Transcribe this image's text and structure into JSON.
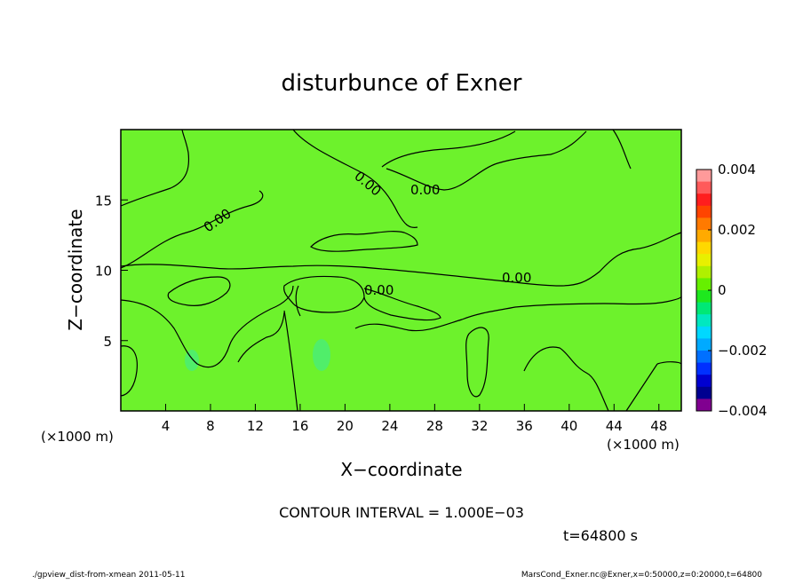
{
  "chart_data": {
    "type": "heatmap",
    "title": "disturbunce of Exner",
    "xlabel": "X−coordinate",
    "ylabel": "Z−coordinate",
    "xunit": "(×1000 m)",
    "yunit": "(×1000 m)",
    "xlim": [
      0,
      50
    ],
    "ylim": [
      0,
      20
    ],
    "xticks": [
      4,
      8,
      12,
      16,
      20,
      24,
      28,
      32,
      36,
      40,
      44,
      48
    ],
    "yticks": [
      5,
      10,
      15
    ],
    "field_value_dominant": 0,
    "contour_labels": [
      "0.00",
      "0.00",
      "0.00",
      "0.00",
      "0.00"
    ],
    "colorbar": {
      "ticks": [
        "0.004",
        "0.002",
        "0",
        "−0.002",
        "−0.004"
      ],
      "tick_values": [
        0.004,
        0.002,
        0,
        -0.002,
        -0.004
      ],
      "vmin": -0.004,
      "vmax": 0.004,
      "colors_top_to_bottom": [
        "#ff9a9a",
        "#ff5a5a",
        "#ff1e1e",
        "#ff4400",
        "#ff7a00",
        "#ffaa00",
        "#ffd800",
        "#e8f000",
        "#b0f000",
        "#66f000",
        "#1ee81e",
        "#00e876",
        "#00e8c0",
        "#00d8ff",
        "#00aaff",
        "#0070ff",
        "#0030ff",
        "#0000d0",
        "#000090",
        "#800090"
      ]
    },
    "colors": {
      "background_field": "#6df22c",
      "light_patch": "#50ee6a",
      "contour": "#000000"
    }
  },
  "contour_interval_text": "CONTOUR INTERVAL = 1.000E−03",
  "time_text": "t=64800 s",
  "footer_left": "./gpview_dist-from-xmean  2011-05-11",
  "footer_right": "MarsCond_Exner.nc@Exner,x=0:50000,z=0:20000,t=64800"
}
